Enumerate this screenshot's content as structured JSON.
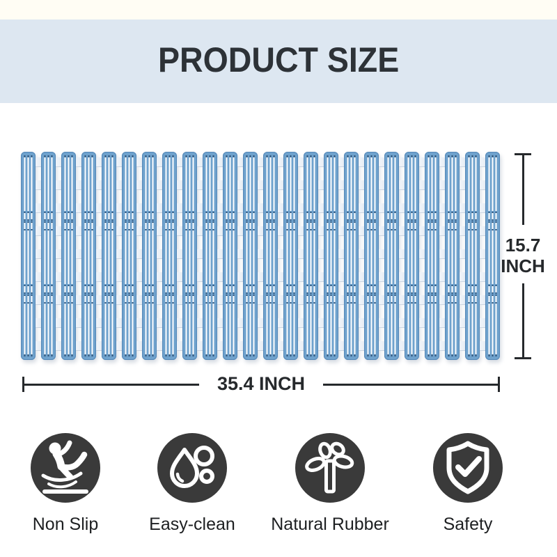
{
  "header": {
    "title": "PRODUCT SIZE"
  },
  "mat": {
    "slat_count": 24,
    "description": "blue slatted bath mat illustration"
  },
  "dimensions": {
    "height": {
      "value": "15.7",
      "unit": "INCH"
    },
    "width": {
      "value": "35.4 INCH"
    }
  },
  "features": [
    {
      "label": "Non Slip",
      "icon": "non-slip-icon"
    },
    {
      "label": "Easy-clean",
      "icon": "easy-clean-icon"
    },
    {
      "label": "Natural Rubber",
      "icon": "natural-rubber-icon"
    },
    {
      "label": "Safety",
      "icon": "safety-icon"
    }
  ],
  "colors": {
    "page_bg": "#ffffff",
    "top_strip": "#fffdf4",
    "header_bg": "#dde7f1",
    "title_text": "#2d3237",
    "mat_blue": "#6fa2cd",
    "mat_blue_dark": "#5588b8",
    "mat_stripe": "#ffffff",
    "mat_dash_dark": "#33567a",
    "tab_fill": "#edf2f8",
    "dim_line": "#26292c",
    "icon_bg": "#3a3a3a",
    "icon_fg": "#ffffff",
    "label_text": "#1d1f21"
  }
}
